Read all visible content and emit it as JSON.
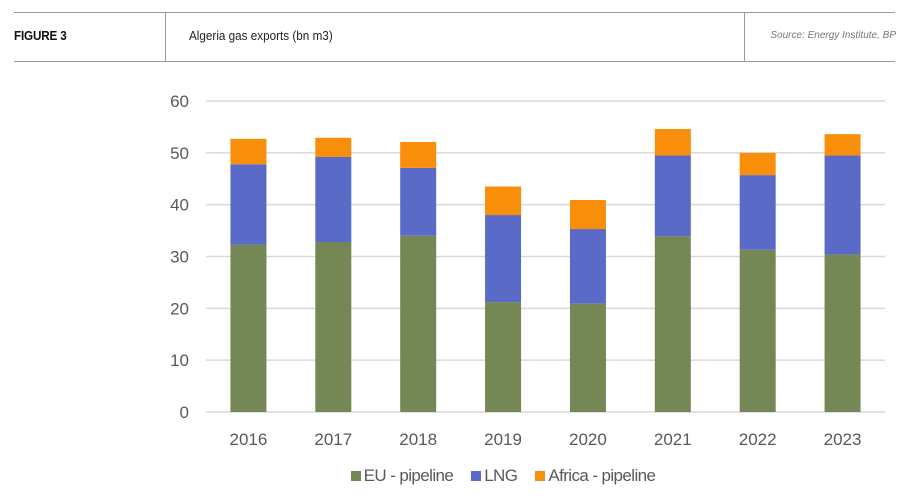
{
  "header": {
    "figure_label": "FIGURE 3",
    "title": "Algeria gas exports (bn m3)",
    "source": "Source: Energy Institute, BP"
  },
  "chart_data": {
    "type": "bar",
    "stacked": true,
    "title": "Algeria gas exports (bn m3)",
    "xlabel": "",
    "ylabel": "",
    "categories": [
      "2016",
      "2017",
      "2018",
      "2019",
      "2020",
      "2021",
      "2022",
      "2023"
    ],
    "series": [
      {
        "name": "EU - pipeline",
        "color": "#748755",
        "values": [
          32.3,
          32.8,
          34.0,
          21.2,
          20.9,
          33.9,
          31.3,
          30.4
        ]
      },
      {
        "name": "LNG",
        "color": "#5A6BC7",
        "values": [
          15.5,
          16.4,
          13.1,
          16.8,
          14.4,
          15.6,
          14.4,
          19.1
        ]
      },
      {
        "name": "Africa - pipeline",
        "color": "#F98E0B",
        "values": [
          4.9,
          3.7,
          5.0,
          5.5,
          5.6,
          5.1,
          4.3,
          4.1
        ]
      }
    ],
    "ylim": [
      0,
      60
    ],
    "yticks": [
      "0",
      "10",
      "20",
      "30",
      "40",
      "50",
      "60"
    ],
    "grid": true,
    "legend_position": "bottom"
  }
}
